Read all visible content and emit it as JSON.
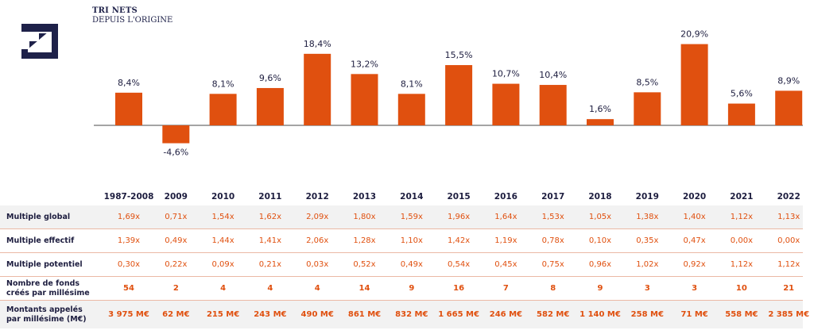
{
  "header": {
    "title": "TRI NETS",
    "subtitle": "DEPUIS L'ORIGINE"
  },
  "colors": {
    "bar": "#e0500f",
    "text": "#1d1d3f",
    "brand": "#1e2149",
    "row_shade": "#f2f2f2",
    "row_border": "#ebb9a5"
  },
  "logo": {
    "icon": "stairs-logo-icon"
  },
  "chart_data": {
    "type": "bar",
    "categories": [
      "1987-2008",
      "2009",
      "2010",
      "2011",
      "2012",
      "2013",
      "2014",
      "2015",
      "2016",
      "2017",
      "2018",
      "2019",
      "2020",
      "2021",
      "2022"
    ],
    "values": [
      8.4,
      -4.6,
      8.1,
      9.6,
      18.4,
      13.2,
      8.1,
      15.5,
      10.7,
      10.4,
      1.6,
      8.5,
      20.9,
      5.6,
      8.9
    ],
    "value_labels": [
      "8,4%",
      "-4,6%",
      "8,1%",
      "9,6%",
      "18,4%",
      "13,2%",
      "8,1%",
      "15,5%",
      "10,7%",
      "10,4%",
      "1,6%",
      "8,5%",
      "20,9%",
      "5,6%",
      "8,9%"
    ],
    "title": "TRI NETS",
    "subtitle": "DEPUIS L'ORIGINE",
    "xlabel": "",
    "ylabel": "",
    "grid": false
  },
  "table": {
    "years": [
      "1987-2008",
      "2009",
      "2010",
      "2011",
      "2012",
      "2013",
      "2014",
      "2015",
      "2016",
      "2017",
      "2018",
      "2019",
      "2020",
      "2021",
      "2022"
    ],
    "rows": [
      {
        "label": "Multiple global",
        "values": [
          "1,69x",
          "0,71x",
          "1,54x",
          "1,62x",
          "2,09x",
          "1,80x",
          "1,59x",
          "1,96x",
          "1,64x",
          "1,53x",
          "1,05x",
          "1,38x",
          "1,40x",
          "1,12x",
          "1,13x"
        ]
      },
      {
        "label": "Multiple effectif",
        "values": [
          "1,39x",
          "0,49x",
          "1,44x",
          "1,41x",
          "2,06x",
          "1,28x",
          "1,10x",
          "1,42x",
          "1,19x",
          "0,78x",
          "0,10x",
          "0,35x",
          "0,47x",
          "0,00x",
          "0,00x"
        ]
      },
      {
        "label": "Multiple potentiel",
        "values": [
          "0,30x",
          "0,22x",
          "0,09x",
          "0,21x",
          "0,03x",
          "0,52x",
          "0,49x",
          "0,54x",
          "0,45x",
          "0,75x",
          "0,96x",
          "1,02x",
          "0,92x",
          "1,12x",
          "1,12x"
        ]
      },
      {
        "label_line1": "Nombre de fonds",
        "label_line2": "créés par millésime",
        "values": [
          "54",
          "2",
          "4",
          "4",
          "4",
          "14",
          "9",
          "16",
          "7",
          "8",
          "9",
          "3",
          "3",
          "10",
          "21"
        ]
      },
      {
        "label_line1": "Montants appelés",
        "label_line2": "par millésime (M€)",
        "values": [
          "3 975 M€",
          "62 M€",
          "215 M€",
          "243 M€",
          "490 M€",
          "861 M€",
          "832 M€",
          "1 665 M€",
          "246 M€",
          "582 M€",
          "1 140 M€",
          "258 M€",
          "71 M€",
          "558 M€",
          "2 385 M€"
        ]
      }
    ]
  }
}
